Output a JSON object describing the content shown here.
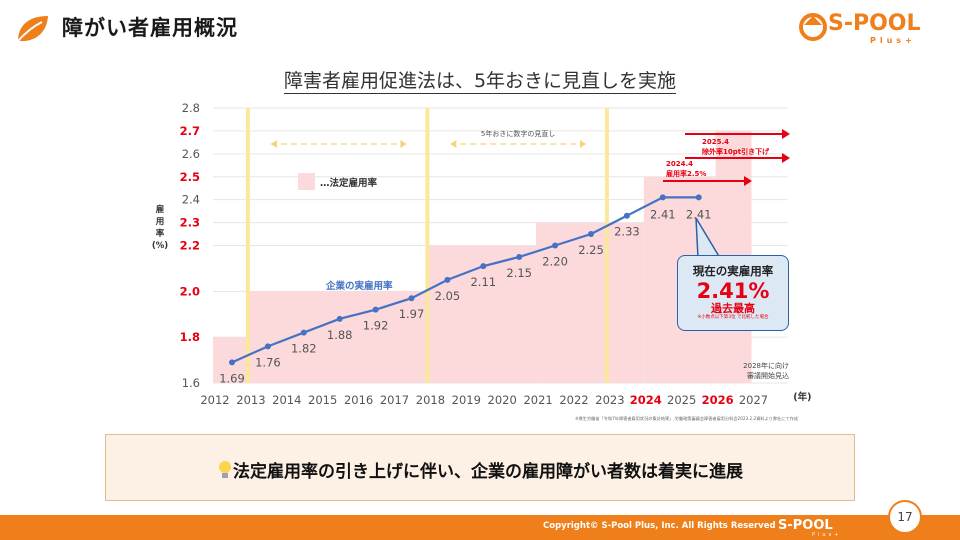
{
  "header": {
    "title": "障がい者雇用概況",
    "logo_text": "S-POOL",
    "logo_sub": "Plus+"
  },
  "chart_title": "障害者雇用促進法は、5年おきに見直しを実施",
  "chart_data": {
    "type": "line",
    "title": "障害者雇用促進法は、5年おきに見直しを実施",
    "ylabel": "雇用率(%)",
    "xlabel": "(年)",
    "ylim": [
      1.6,
      2.8
    ],
    "categories": [
      "2012",
      "2013",
      "2014",
      "2015",
      "2016",
      "2017",
      "2018",
      "2019",
      "2020",
      "2021",
      "2022",
      "2023",
      "2024",
      "2025",
      "2026",
      "2027"
    ],
    "highlight_categories": [
      "2024",
      "2026"
    ],
    "y_ticks": [
      {
        "value": 1.6,
        "label": "1.6",
        "highlight": false
      },
      {
        "value": 1.8,
        "label": "1.8",
        "highlight": true
      },
      {
        "value": 2.0,
        "label": "2.0",
        "highlight": true
      },
      {
        "value": 2.2,
        "label": "2.2",
        "highlight": true
      },
      {
        "value": 2.3,
        "label": "2.3",
        "highlight": true
      },
      {
        "value": 2.4,
        "label": "2.4",
        "highlight": false
      },
      {
        "value": 2.5,
        "label": "2.5",
        "highlight": true
      },
      {
        "value": 2.6,
        "label": "2.6",
        "highlight": false
      },
      {
        "value": 2.7,
        "label": "2.7",
        "highlight": true
      },
      {
        "value": 2.8,
        "label": "2.8",
        "highlight": false
      }
    ],
    "legal_rate": {
      "name": "…法定雇用率",
      "steps": [
        {
          "from": "2012",
          "to": "2013",
          "value": 1.8
        },
        {
          "from": "2013",
          "to": "2018",
          "value": 2.0
        },
        {
          "from": "2018",
          "to": "2021",
          "value": 2.2
        },
        {
          "from": "2021",
          "to": "2024",
          "value": 2.3
        },
        {
          "from": "2024",
          "to": "2026",
          "value": 2.5
        },
        {
          "from": "2026",
          "to": "2027",
          "value": 2.7
        }
      ]
    },
    "series": [
      {
        "name": "企業の実雇用率",
        "x": [
          "2012",
          "2013",
          "2014",
          "2015",
          "2016",
          "2017",
          "2018",
          "2019",
          "2020",
          "2021",
          "2022",
          "2023",
          "2024",
          "2025"
        ],
        "values": [
          1.69,
          1.76,
          1.82,
          1.88,
          1.92,
          1.97,
          2.05,
          2.11,
          2.15,
          2.2,
          2.25,
          2.33,
          2.41,
          2.41
        ],
        "color": "#4472c4"
      }
    ],
    "review_years": [
      "2013",
      "2018",
      "2023"
    ],
    "review_label": "5年おきに数字の見直し",
    "annotations": {
      "a2024": "2024.4\n雇用率2.5%",
      "a2025": "2025.4\n除外率10pt引き下げ",
      "a2028": "2028年に向け\n審議開始見込",
      "source": "※厚生労働省「令和7年障害者雇用状況の集計結果」,労働政策審議会障害者雇用分科会2023.2.2資料より弊社にて作成"
    },
    "bubble": {
      "title": "現在の実雇用率",
      "value": "2.41%",
      "sub": "過去最高",
      "note": "※小数点以下第3位\n で比較した場合"
    }
  },
  "conclusion": "法定雇用率の引き上げに伴い、企業の雇用障がい者数は着実に進展",
  "footer": {
    "copyright": "Copyright© S-Pool Plus, Inc. All Rights Reserved",
    "logo": "S-POOL",
    "logo_sub": "Plus+"
  },
  "page_number": "17",
  "colors": {
    "accent": "#ef7f1a",
    "legal_fill": "#fcd9db",
    "line": "#4472c4",
    "highlight_red": "#e60012",
    "review_line": "#fce89a"
  }
}
